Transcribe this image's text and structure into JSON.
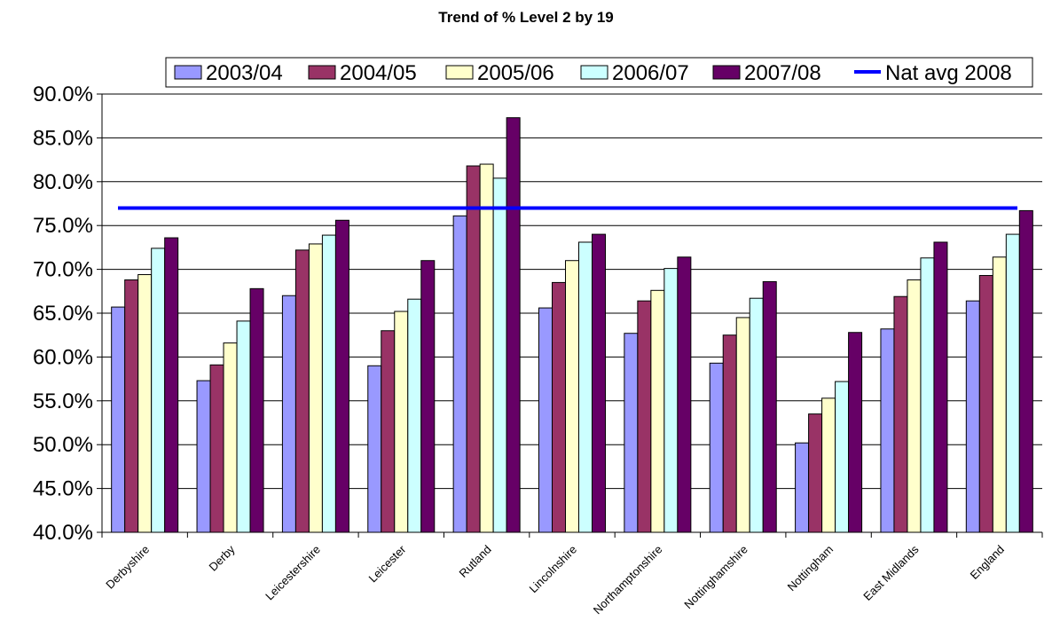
{
  "chart_data": {
    "type": "bar",
    "title": "Trend of % Level 2 by 19",
    "xlabel": "",
    "ylabel": "",
    "ylim": [
      40,
      90
    ],
    "ytick_step": 5,
    "ytick_labels": [
      "40.0%",
      "45.0%",
      "50.0%",
      "55.0%",
      "60.0%",
      "65.0%",
      "70.0%",
      "75.0%",
      "80.0%",
      "85.0%",
      "90.0%"
    ],
    "grid": true,
    "legend_position": "top",
    "categories": [
      "Derbyshire",
      "Derby",
      "Leicestershire",
      "Leicester",
      "Rutland",
      "Lincolnshire",
      "Northamptonshire",
      "Nottinghamshire",
      "Nottingham",
      "East Midlands",
      "England"
    ],
    "series": [
      {
        "name": "2003/04",
        "color": "#9999ff",
        "values": [
          65.7,
          57.3,
          67.0,
          59.0,
          76.1,
          65.6,
          62.7,
          59.3,
          50.2,
          63.2,
          66.4
        ]
      },
      {
        "name": "2004/05",
        "color": "#993366",
        "values": [
          68.8,
          59.1,
          72.2,
          63.0,
          81.8,
          68.5,
          66.4,
          62.5,
          53.5,
          66.9,
          69.3
        ]
      },
      {
        "name": "2005/06",
        "color": "#ffffcc",
        "values": [
          69.4,
          61.6,
          72.9,
          65.2,
          82.0,
          71.0,
          67.6,
          64.5,
          55.3,
          68.8,
          71.4
        ]
      },
      {
        "name": "2006/07",
        "color": "#ccffff",
        "values": [
          72.4,
          64.1,
          73.9,
          66.6,
          80.4,
          73.1,
          70.1,
          66.7,
          57.2,
          71.3,
          74.0
        ]
      },
      {
        "name": "2007/08",
        "color": "#660066",
        "values": [
          73.6,
          67.8,
          75.6,
          71.0,
          87.3,
          74.0,
          71.4,
          68.6,
          62.8,
          73.1,
          76.7
        ]
      }
    ],
    "reference_line": {
      "name": "Nat avg 2008",
      "color": "#0000ff",
      "value": 77.0
    }
  }
}
